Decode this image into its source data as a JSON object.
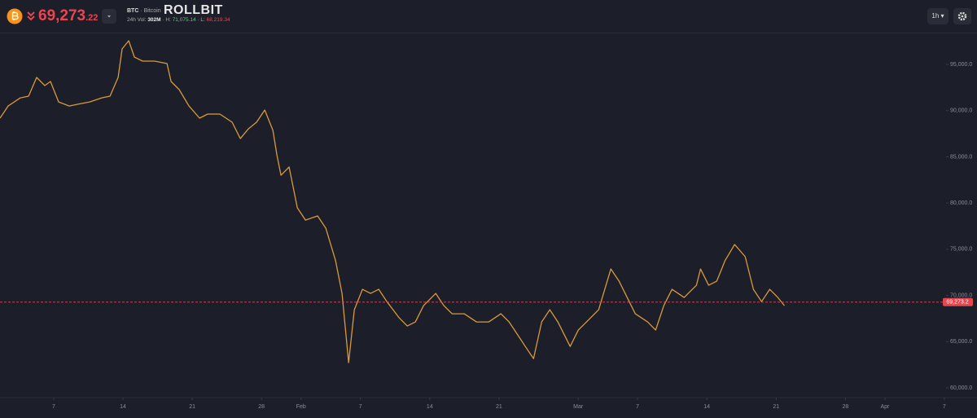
{
  "header": {
    "price_main": "69,273",
    "price_decimals": ".22",
    "symbol": "BTC",
    "name": "· Bitcoin",
    "brand": "ROLLBIT",
    "volume_label": "24h Vol:",
    "volume": "302M",
    "high_label": "· H:",
    "high": "71,075.14",
    "low_label": "· L:",
    "low": "68,219.34",
    "interval": "1h"
  },
  "chart_data": {
    "type": "line",
    "color": "#d99a3a",
    "x": [
      0.58,
      1.4,
      2.63,
      3.46,
      4.28,
      5.1,
      5.68,
      6.5,
      7.57,
      8.4,
      9.63,
      10.86,
      11.69,
      12.51,
      12.92,
      13.58,
      14.16,
      14.98,
      16.21,
      17.45,
      17.86,
      18.68,
      19.67,
      20.74,
      21.56,
      22.8,
      24.03,
      24.86,
      25.68,
      26.5,
      27.33,
      28.15,
      28.56,
      28.97,
      29.79,
      30.62,
      31.44,
      32.67,
      33.5,
      34.49,
      35.14,
      35.8,
      36.38,
      37.2,
      38.02,
      38.85,
      39.67,
      40.91,
      41.73,
      42.55,
      43.37,
      44.61,
      45.43,
      46.26,
      47.49,
      48.72,
      49.96,
      51.19,
      52.02,
      52.84,
      53.66,
      54.49,
      55.31,
      56.13,
      56.95,
      58.19,
      59.01,
      59.84,
      61.07,
      62.3,
      63.13,
      63.95,
      64.77,
      66.01,
      66.83,
      67.65,
      68.48,
      69.71,
      70.95,
      71.36,
      72.18,
      73.0,
      73.83,
      74.81,
      75.88,
      76.71,
      77.53,
      78.35,
      79.18,
      79.84
    ],
    "values": [
      89180,
      90500,
      91380,
      91560,
      93590,
      92710,
      93150,
      90940,
      90500,
      90680,
      90940,
      91380,
      91560,
      93590,
      96680,
      97560,
      95790,
      95350,
      95350,
      95090,
      93150,
      92270,
      90500,
      89180,
      89620,
      89620,
      88740,
      86970,
      88030,
      88740,
      90060,
      87860,
      85210,
      83000,
      83890,
      79480,
      78150,
      78600,
      77270,
      73740,
      70220,
      62720,
      68450,
      70660,
      70220,
      70660,
      69330,
      67570,
      66690,
      67130,
      68890,
      70220,
      68890,
      68010,
      68010,
      67130,
      67130,
      68010,
      67130,
      65810,
      64480,
      63160,
      67130,
      68450,
      67130,
      64480,
      66250,
      67130,
      68450,
      72860,
      71540,
      69780,
      68010,
      67130,
      66250,
      68890,
      70660,
      69780,
      71100,
      72860,
      71100,
      71540,
      73740,
      75510,
      74190,
      70660,
      69330,
      70660,
      69780,
      68890
    ],
    "xlim": [
      0.576,
      99.3
    ],
    "xticks": [
      {
        "value": 6,
        "label": "7"
      },
      {
        "value": 13,
        "label": "14"
      },
      {
        "value": 20,
        "label": "21"
      },
      {
        "value": 27,
        "label": "28"
      },
      {
        "value": 31,
        "label": "Feb"
      },
      {
        "value": 37,
        "label": "7"
      },
      {
        "value": 44,
        "label": "14"
      },
      {
        "value": 51,
        "label": "21"
      },
      {
        "value": 59,
        "label": "Mar"
      },
      {
        "value": 65,
        "label": "7"
      },
      {
        "value": 72,
        "label": "14"
      },
      {
        "value": 79,
        "label": "21"
      },
      {
        "value": 86,
        "label": "28"
      },
      {
        "value": 90,
        "label": "Apr"
      },
      {
        "value": 96,
        "label": "7"
      }
    ],
    "ylim": [
      58940,
      98440
    ],
    "yticks": [
      {
        "value": 60000,
        "label": "60,000.0"
      },
      {
        "value": 65000,
        "label": "65,000.0"
      },
      {
        "value": 70000,
        "label": "70,000.0"
      },
      {
        "value": 75000,
        "label": "75,000.0"
      },
      {
        "value": 80000,
        "label": "80,000.0"
      },
      {
        "value": 85000,
        "label": "85,000.0"
      },
      {
        "value": 90000,
        "label": "90,000.0"
      },
      {
        "value": 95000,
        "label": "95,000.0"
      }
    ],
    "current_price": {
      "value": 69273.2,
      "label": "69,273.2"
    },
    "current_color": "#e8464f"
  }
}
